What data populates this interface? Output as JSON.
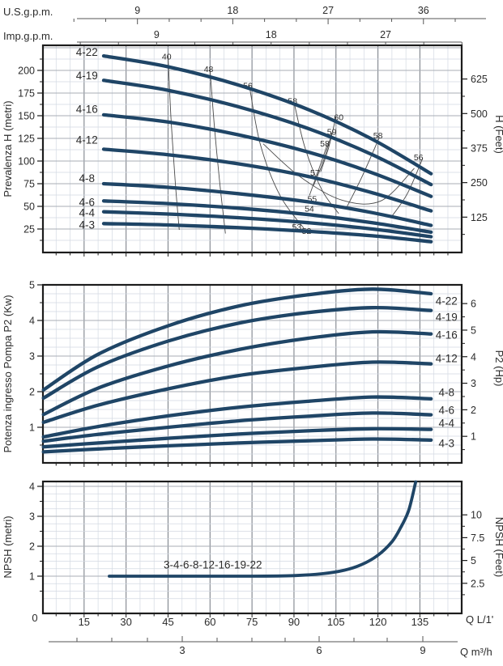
{
  "colors": {
    "curve": "#1f4566",
    "grid_minor": "#d3d9e2",
    "grid_major_v": "#7f848c",
    "grid_major_h": "#a8aeb6",
    "border": "#1c1c1c",
    "contour": "#4a4a4a",
    "axis_line": "#555555",
    "text": "#2b2b2b"
  },
  "rulers": {
    "us": {
      "title": "U.S.g.p.m.",
      "ticks": [
        9,
        18,
        27,
        36
      ],
      "minor_step": 3,
      "max": 39
    },
    "imp": {
      "title": "Imp.g.p.m.",
      "ticks": [
        9,
        18,
        27
      ],
      "minor_step": 3,
      "max": 33
    },
    "lmin": {
      "title": "Q L/1'",
      "zero": "0",
      "ticks": [
        15,
        30,
        45,
        60,
        75,
        90,
        105,
        120,
        135
      ]
    },
    "m3h": {
      "title": "Q m³/h",
      "ticks": [
        3,
        6,
        9
      ]
    }
  },
  "chart_data": [
    {
      "id": "head",
      "type": "line",
      "xlabel": "Q L/1'",
      "xlim": [
        0,
        150
      ],
      "ylabel": "Prevalenza H (metri)",
      "ylabel_right": "H (Feet)",
      "ylim": [
        0,
        227
      ],
      "yticks_left": [
        25,
        50,
        75,
        100,
        125,
        150,
        175,
        200
      ],
      "yticks_right": [
        125,
        250,
        375,
        500,
        625
      ],
      "series": [
        {
          "name": "4-22",
          "x": [
            22,
            45,
            70,
            95,
            118,
            139
          ],
          "y": [
            216,
            204,
            184,
            157,
            124,
            86
          ],
          "label_at": [
            16,
            220
          ]
        },
        {
          "name": "4-19",
          "x": [
            22,
            45,
            70,
            95,
            118,
            139
          ],
          "y": [
            189,
            178,
            160,
            136,
            107,
            74
          ],
          "label_at": [
            16,
            194
          ]
        },
        {
          "name": "4-16",
          "x": [
            22,
            45,
            70,
            95,
            118,
            139
          ],
          "y": [
            151,
            143,
            129,
            110,
            87,
            61
          ],
          "label_at": [
            16,
            157
          ]
        },
        {
          "name": "4-12",
          "x": [
            22,
            45,
            70,
            95,
            118,
            139
          ],
          "y": [
            113,
            107,
            97,
            83,
            65,
            45
          ],
          "label_at": [
            16,
            123
          ]
        },
        {
          "name": "4-8",
          "x": [
            22,
            45,
            70,
            95,
            118,
            139
          ],
          "y": [
            75,
            71,
            64,
            55,
            43,
            29
          ],
          "label_at": [
            16,
            81
          ]
        },
        {
          "name": "4-6",
          "x": [
            22,
            45,
            70,
            95,
            118,
            139
          ],
          "y": [
            56,
            53,
            48,
            41,
            32,
            21.5
          ],
          "label_at": [
            16,
            54.5
          ]
        },
        {
          "name": "4-4",
          "x": [
            22,
            45,
            70,
            95,
            118,
            139
          ],
          "y": [
            44,
            41.5,
            37.5,
            32,
            25,
            16.5
          ],
          "label_at": [
            16,
            43
          ]
        },
        {
          "name": "4-3",
          "x": [
            22,
            45,
            70,
            95,
            118,
            139
          ],
          "y": [
            31,
            29.5,
            26.5,
            22.5,
            17.5,
            11
          ],
          "label_at": [
            16,
            29.5
          ]
        }
      ],
      "efficiency_contours": [
        {
          "label": "40",
          "points": [
            [
              45,
              216
            ],
            [
              46,
              150
            ],
            [
              47.5,
              80
            ],
            [
              49,
              24
            ]
          ],
          "label_at": [
            44.5,
            212
          ]
        },
        {
          "label": "48",
          "points": [
            [
              60,
              201
            ],
            [
              61.5,
              140
            ],
            [
              63.5,
              75
            ],
            [
              65.5,
              20
            ]
          ],
          "label_at": [
            59.5,
            198
          ]
        },
        {
          "label": "56",
          "points": [
            [
              74,
              184
            ],
            [
              78,
              118
            ],
            [
              85,
              62
            ],
            [
              93.5,
              26
            ]
          ],
          "label_at": [
            73.5,
            180
          ]
        },
        {
          "label": "58",
          "points": [
            [
              90,
              165
            ],
            [
              94,
              114
            ],
            [
              100,
              68
            ],
            [
              106,
              42
            ]
          ],
          "label_at": [
            89.5,
            163
          ]
        },
        {
          "label": "60",
          "points": [
            [
              105,
              149
            ],
            [
              102.5,
              116
            ],
            [
              99.5,
              88
            ]
          ],
          "label_at": [
            106,
            145
          ]
        },
        {
          "label": "59",
          "points": [
            [
              103.5,
              131
            ],
            [
              100.5,
              100
            ],
            [
              97,
              73
            ]
          ],
          "label_at": [
            103.5,
            129
          ]
        },
        {
          "label": "58",
          "points": [
            [
              102,
              119
            ],
            [
              99,
              92
            ],
            [
              95.5,
              62
            ]
          ],
          "label_at": [
            101,
            116
          ]
        },
        {
          "label": "57",
          "points": [
            [
              79,
              119
            ],
            [
              92,
              83
            ],
            [
              107,
              57
            ],
            [
              121,
              56
            ],
            [
              133,
              92
            ]
          ],
          "label_at": [
            97.5,
            84
          ]
        },
        {
          "label": "58",
          "points": [
            [
              120.5,
              126
            ],
            [
              114.5,
              84
            ],
            [
              109,
              50
            ]
          ],
          "label_at": [
            120,
            125
          ]
        },
        {
          "label": "56",
          "points": [
            [
              136,
              103
            ],
            [
              130.5,
              64
            ],
            [
              124.5,
              37
            ]
          ],
          "label_at": [
            134.5,
            101
          ]
        },
        {
          "label": "55",
          "points": [],
          "label_at": [
            96.5,
            55
          ]
        },
        {
          "label": "54",
          "points": [],
          "label_at": [
            95.5,
            44
          ]
        },
        {
          "label": "53",
          "points": [],
          "label_at": [
            91,
            24
          ]
        },
        {
          "label": "52",
          "points": [],
          "label_at": [
            94.5,
            19.5
          ]
        }
      ]
    },
    {
      "id": "power",
      "type": "line",
      "xlabel": "Q L/1'",
      "xlim": [
        0,
        150
      ],
      "ylabel": "Potenza ingresso Pompa P2 (Kw)",
      "ylabel_right": "P2 (Hp)",
      "ylim": [
        0,
        5
      ],
      "yticks_left": [
        1,
        2,
        3,
        4,
        5
      ],
      "yticks_right": [
        1,
        2,
        3,
        4,
        5,
        6
      ],
      "series": [
        {
          "name": "4-22",
          "x": [
            0.5,
            20,
            45,
            70,
            95,
            118,
            139
          ],
          "y": [
            2.05,
            3.05,
            3.85,
            4.4,
            4.72,
            4.88,
            4.75
          ],
          "label_at": [
            144.5,
            4.55
          ]
        },
        {
          "name": "4-19",
          "x": [
            0.5,
            20,
            45,
            70,
            95,
            118,
            139
          ],
          "y": [
            1.82,
            2.7,
            3.42,
            3.92,
            4.22,
            4.36,
            4.28
          ],
          "label_at": [
            144.5,
            4.09
          ]
        },
        {
          "name": "4-16",
          "x": [
            0.5,
            20,
            45,
            70,
            95,
            118,
            139
          ],
          "y": [
            1.36,
            2.1,
            2.72,
            3.18,
            3.5,
            3.68,
            3.62
          ],
          "label_at": [
            144.5,
            3.59
          ]
        },
        {
          "name": "4-12",
          "x": [
            0.5,
            20,
            45,
            70,
            95,
            118,
            139
          ],
          "y": [
            1.14,
            1.62,
            2.08,
            2.45,
            2.68,
            2.83,
            2.78
          ],
          "label_at": [
            144.5,
            2.93
          ]
        },
        {
          "name": "4-8",
          "x": [
            0.5,
            20,
            45,
            70,
            95,
            118,
            139
          ],
          "y": [
            0.73,
            1.02,
            1.32,
            1.56,
            1.73,
            1.85,
            1.8
          ],
          "label_at": [
            144.5,
            1.98
          ]
        },
        {
          "name": "4-6",
          "x": [
            0.5,
            20,
            45,
            70,
            95,
            118,
            139
          ],
          "y": [
            0.61,
            0.8,
            1.0,
            1.18,
            1.31,
            1.4,
            1.35
          ],
          "label_at": [
            144.5,
            1.48
          ]
        },
        {
          "name": "4-4",
          "x": [
            0.5,
            20,
            45,
            70,
            95,
            118,
            139
          ],
          "y": [
            0.45,
            0.56,
            0.69,
            0.81,
            0.9,
            0.96,
            0.94
          ],
          "label_at": [
            144.5,
            1.11
          ]
        },
        {
          "name": "4-3",
          "x": [
            0.5,
            20,
            45,
            70,
            95,
            118,
            139
          ],
          "y": [
            0.31,
            0.39,
            0.48,
            0.56,
            0.62,
            0.67,
            0.64
          ],
          "label_at": [
            144.5,
            0.55
          ]
        }
      ]
    },
    {
      "id": "npsh",
      "type": "line",
      "xlabel": "Q L/1'",
      "xlim": [
        0,
        150
      ],
      "ylabel": "NPSH (metri)",
      "ylabel_right": "NPSH (Feet)",
      "ylim": [
        0,
        4.2
      ],
      "yticks_left": [
        1,
        2,
        3,
        4
      ],
      "yticks_right": [
        2.5,
        5,
        7.5,
        10
      ],
      "series": [
        {
          "name": "3-4-6-8-12-16-19-22",
          "x": [
            24,
            50,
            75,
            90,
            100,
            108,
            114,
            120,
            125,
            128,
            131,
            133.5
          ],
          "y": [
            1.0,
            1.0,
            1.0,
            1.02,
            1.08,
            1.2,
            1.38,
            1.7,
            2.15,
            2.6,
            3.2,
            4.15
          ],
          "label_at": [
            61,
            1.38
          ]
        }
      ]
    }
  ]
}
